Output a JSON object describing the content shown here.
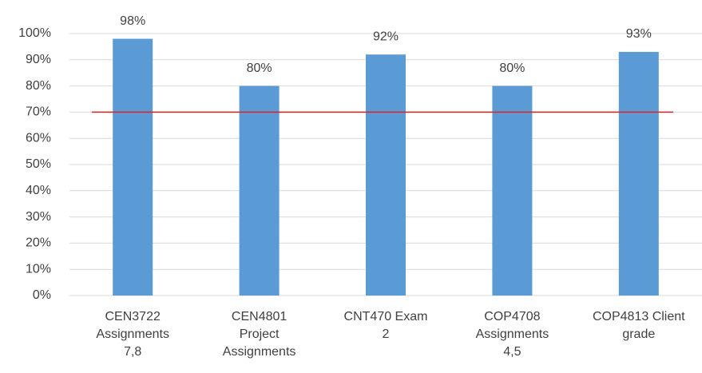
{
  "chart_data": {
    "type": "bar",
    "categories": [
      "CEN3722 Assignments 7,8",
      "CEN4801 Project Assignments",
      "CNT470 Exam 2",
      "COP4708 Assignments 4,5",
      "COP4813 Client grade"
    ],
    "values": [
      98,
      80,
      92,
      80,
      93
    ],
    "value_labels": [
      "98%",
      "80%",
      "92%",
      "80%",
      "93%"
    ],
    "color": "#5b9bd5",
    "ylim": [
      0,
      100
    ],
    "yticks": [
      {
        "value": 0,
        "label": "0%"
      },
      {
        "value": 10,
        "label": "10%"
      },
      {
        "value": 20,
        "label": "20%"
      },
      {
        "value": 30,
        "label": "30%"
      },
      {
        "value": 40,
        "label": "40%"
      },
      {
        "value": 50,
        "label": "50%"
      },
      {
        "value": 60,
        "label": "60%"
      },
      {
        "value": 70,
        "label": "70%"
      },
      {
        "value": 80,
        "label": "80%"
      },
      {
        "value": 90,
        "label": "90%"
      },
      {
        "value": 100,
        "label": "100%"
      }
    ],
    "grid": true,
    "reference_line": {
      "value": 70,
      "color": "#e02020"
    }
  }
}
